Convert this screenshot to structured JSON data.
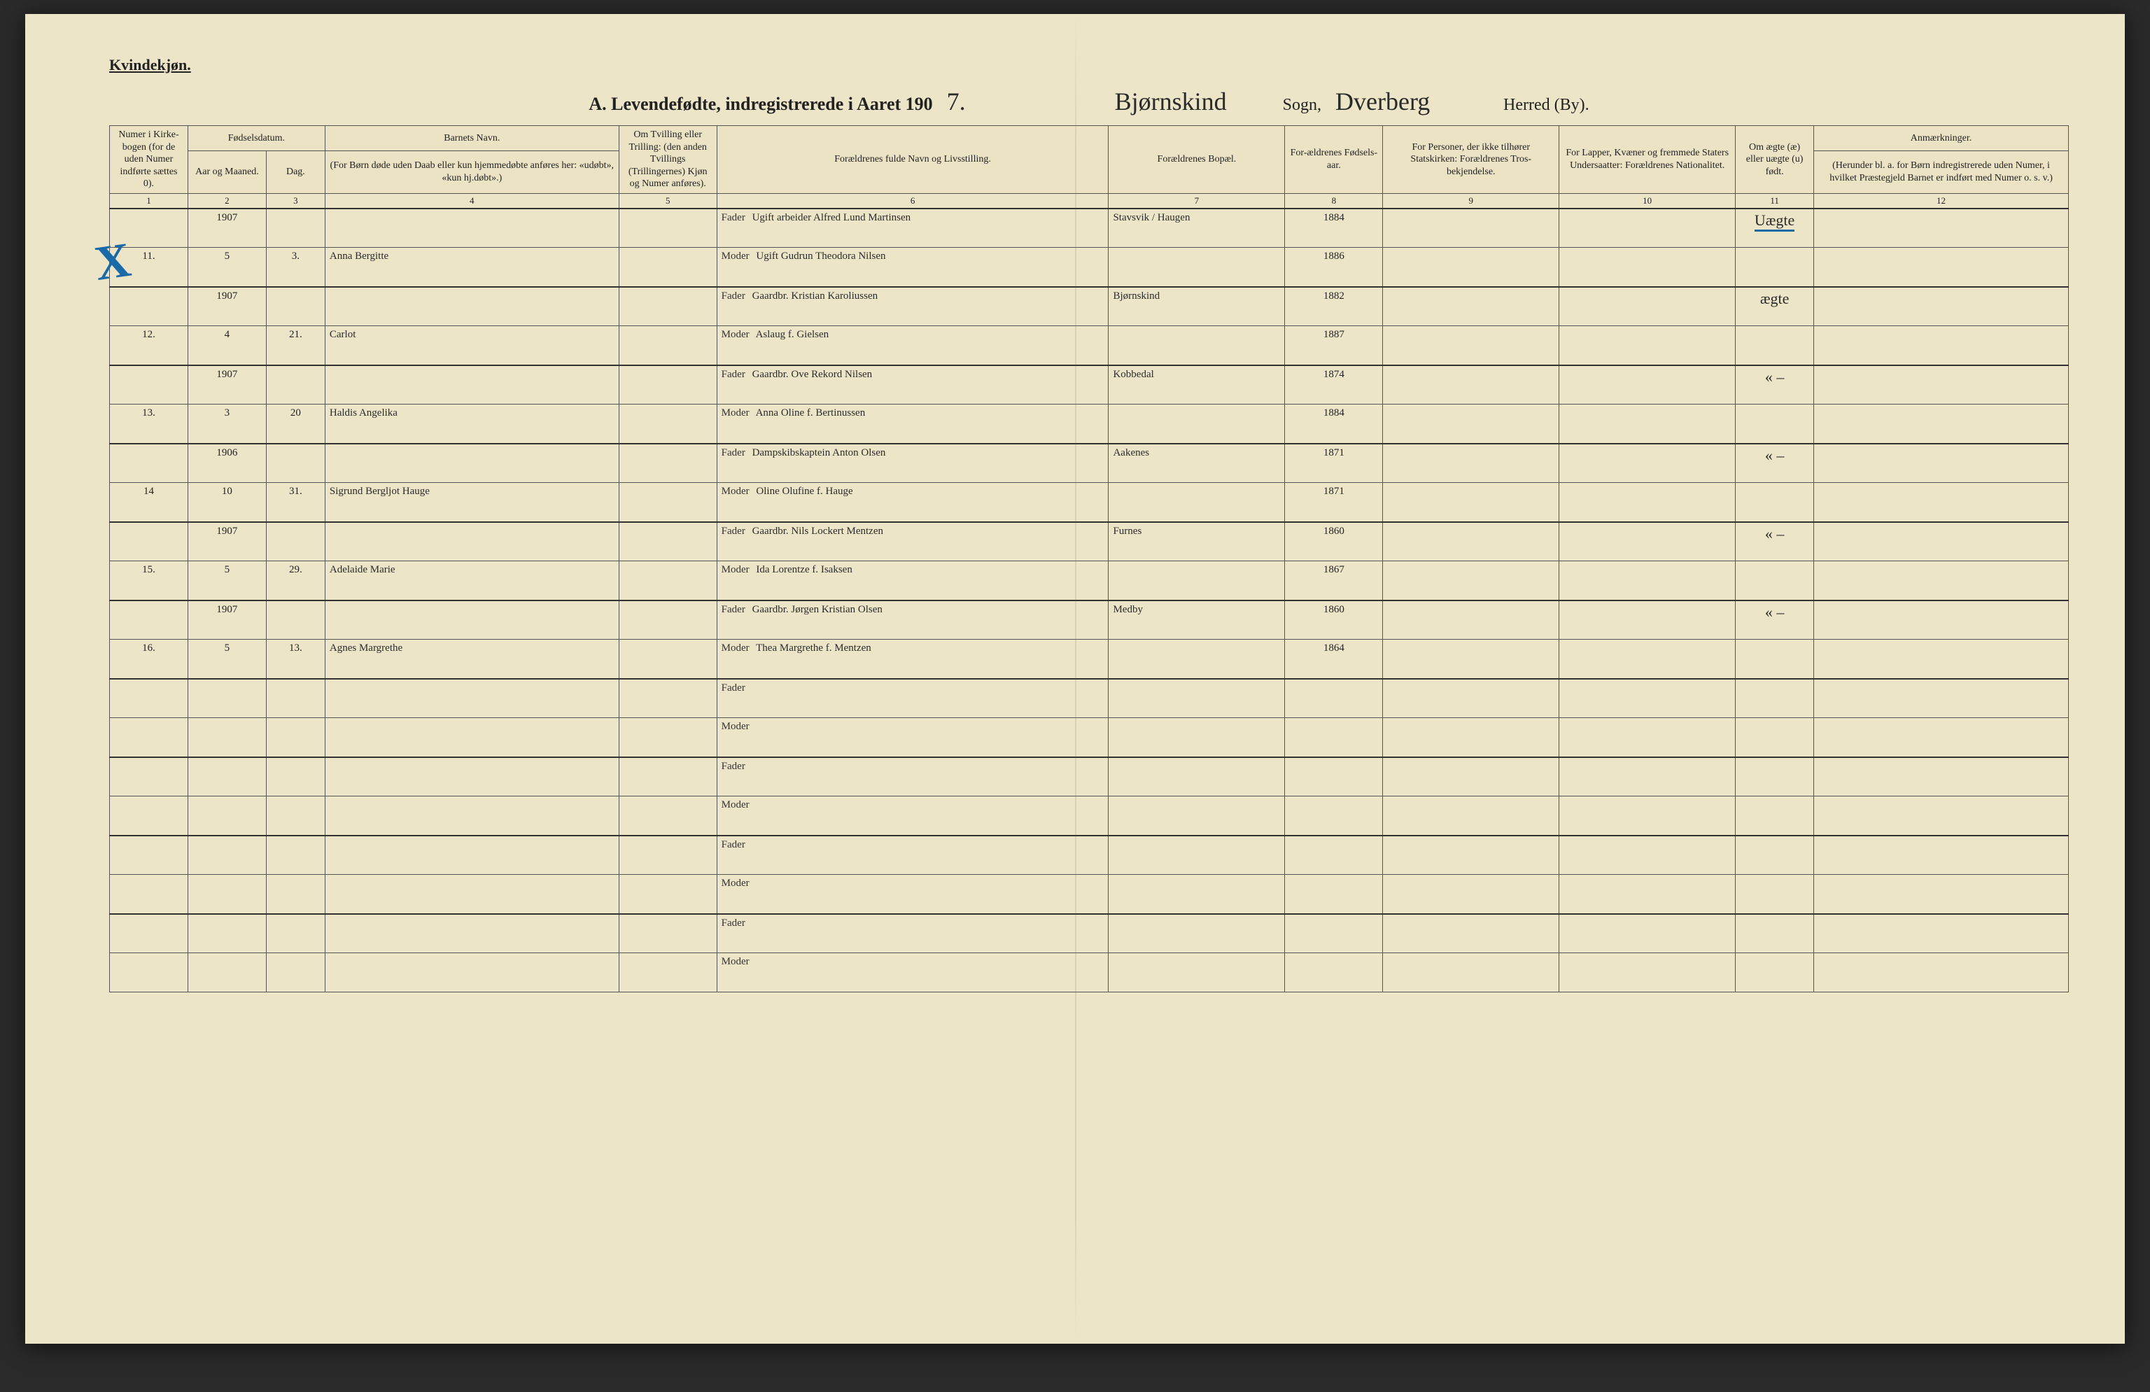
{
  "top_label": "Kvindekjøn.",
  "title": {
    "prefix": "A.  Levendefødte, indregistrerede i Aaret 190",
    "year_digit": "7.",
    "sogn_value": "Bjørnskind",
    "sogn_label": "Sogn,",
    "herred_value": "Dverberg",
    "herred_label": "Herred (By)."
  },
  "headers": {
    "c1": "Numer i Kirke-bogen (for de uden Numer indførte sættes 0).",
    "c2a": "Fødselsdatum.",
    "c2": "Aar og Maaned.",
    "c3": "Dag.",
    "c4a": "Barnets Navn.",
    "c4": "(For Børn døde uden Daab eller kun hjemmedøbte anføres her: «udøbt», «kun hj.døbt».)",
    "c5": "Om Tvilling eller Trilling: (den anden Tvillings (Trillingernes) Kjøn og Numer anføres).",
    "c6": "Forældrenes fulde Navn og Livsstilling.",
    "c7": "Forældrenes Bopæl.",
    "c8": "For-ældrenes Fødsels-aar.",
    "c9": "For Personer, der ikke tilhører Statskirken: Forældrenes Tros-bekjendelse.",
    "c10": "For Lapper, Kvæner og fremmede Staters Undersaatter: Forældrenes Nationalitet.",
    "c11": "Om ægte (æ) eller uægte (u) født.",
    "c12a": "Anmærkninger.",
    "c12": "(Herunder bl. a. for Børn indregistrerede uden Numer, i hvilket Præstegjeld Barnet er indført med Numer o. s. v.)"
  },
  "colnums": [
    "1",
    "2",
    "3",
    "4",
    "5",
    "6",
    "7",
    "8",
    "9",
    "10",
    "11",
    "12"
  ],
  "fader_label": "Fader",
  "moder_label": "Moder",
  "entries": [
    {
      "num": "11.",
      "year": "1907",
      "month": "5",
      "day": "3.",
      "name": "Anna Bergitte",
      "fader": "Ugift arbeider Alfred Lund Martinsen",
      "moder": "Ugift Gudrun Theodora Nilsen",
      "bopael": "Stavsvik / Haugen",
      "fyear_f": "1884",
      "fyear_m": "1886",
      "aegte": "Uægte"
    },
    {
      "num": "12.",
      "year": "1907",
      "month": "4",
      "day": "21.",
      "name": "Carlot",
      "fader": "Gaardbr. Kristian Karoliussen",
      "moder": "Aslaug f. Gielsen",
      "bopael": "Bjørnskind",
      "fyear_f": "1882",
      "fyear_m": "1887",
      "aegte": "ægte"
    },
    {
      "num": "13.",
      "year": "1907",
      "month": "3",
      "day": "20",
      "name": "Haldis Angelika",
      "fader": "Gaardbr. Ove Rekord Nilsen",
      "moder": "Anna Oline f. Bertinussen",
      "bopael": "Kobbedal",
      "fyear_f": "1874",
      "fyear_m": "1884",
      "aegte": "« –"
    },
    {
      "num": "14",
      "year": "1906",
      "month": "10",
      "day": "31.",
      "name": "Sigrund Bergljot Hauge",
      "fader": "Dampskibskaptein Anton Olsen",
      "moder": "Oline Olufine f. Hauge",
      "bopael": "Aakenes",
      "fyear_f": "1871",
      "fyear_m": "1871",
      "aegte": "« –"
    },
    {
      "num": "15.",
      "year": "1907",
      "month": "5",
      "day": "29.",
      "name": "Adelaide Marie",
      "fader": "Gaardbr. Nils Lockert Mentzen",
      "moder": "Ida Lorentze f. Isaksen",
      "bopael": "Furnes",
      "fyear_f": "1860",
      "fyear_m": "1867",
      "aegte": "« –"
    },
    {
      "num": "16.",
      "year": "1907",
      "month": "5",
      "day": "13.",
      "name": "Agnes Margrethe",
      "fader": "Gaardbr. Jørgen Kristian Olsen",
      "moder": "Thea Margrethe f. Mentzen",
      "bopael": "Medby",
      "fyear_f": "1860",
      "fyear_m": "1864",
      "aegte": "« –"
    }
  ],
  "blank_rows": 4,
  "colors": {
    "paper": "#ede5c8",
    "ink": "#2b2b2b",
    "rule": "#555555",
    "blue_pencil": "#1a6aa8"
  }
}
